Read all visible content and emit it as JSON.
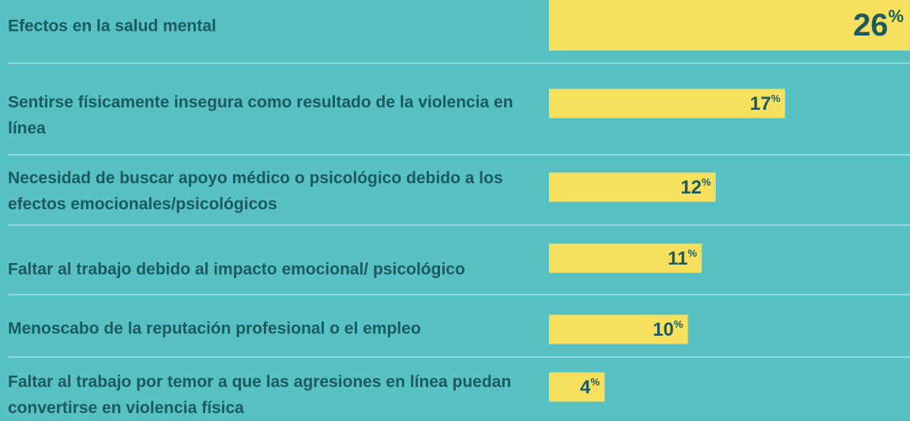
{
  "chart_data": {
    "type": "bar",
    "categories": [
      "Efectos en la salud mental",
      "Sentirse físicamente insegura como resultado de la violencia en línea",
      "Necesidad de buscar apoyo médico o psicológico debido a los efectos emocionales/psicológicos",
      "Faltar al trabajo debido al impacto emocional/ psicológico",
      "Menoscabo de la reputación profesional o el empleo",
      "Faltar al trabajo por temor a que las agresiones en línea puedan convertirse en violencia física"
    ],
    "values": [
      26,
      17,
      12,
      11,
      10,
      4
    ],
    "value_labels": [
      "26%",
      "17%",
      "12%",
      "11%",
      "10%",
      "4%"
    ],
    "color": "#f7e05e",
    "xlim": [
      0,
      26
    ]
  }
}
